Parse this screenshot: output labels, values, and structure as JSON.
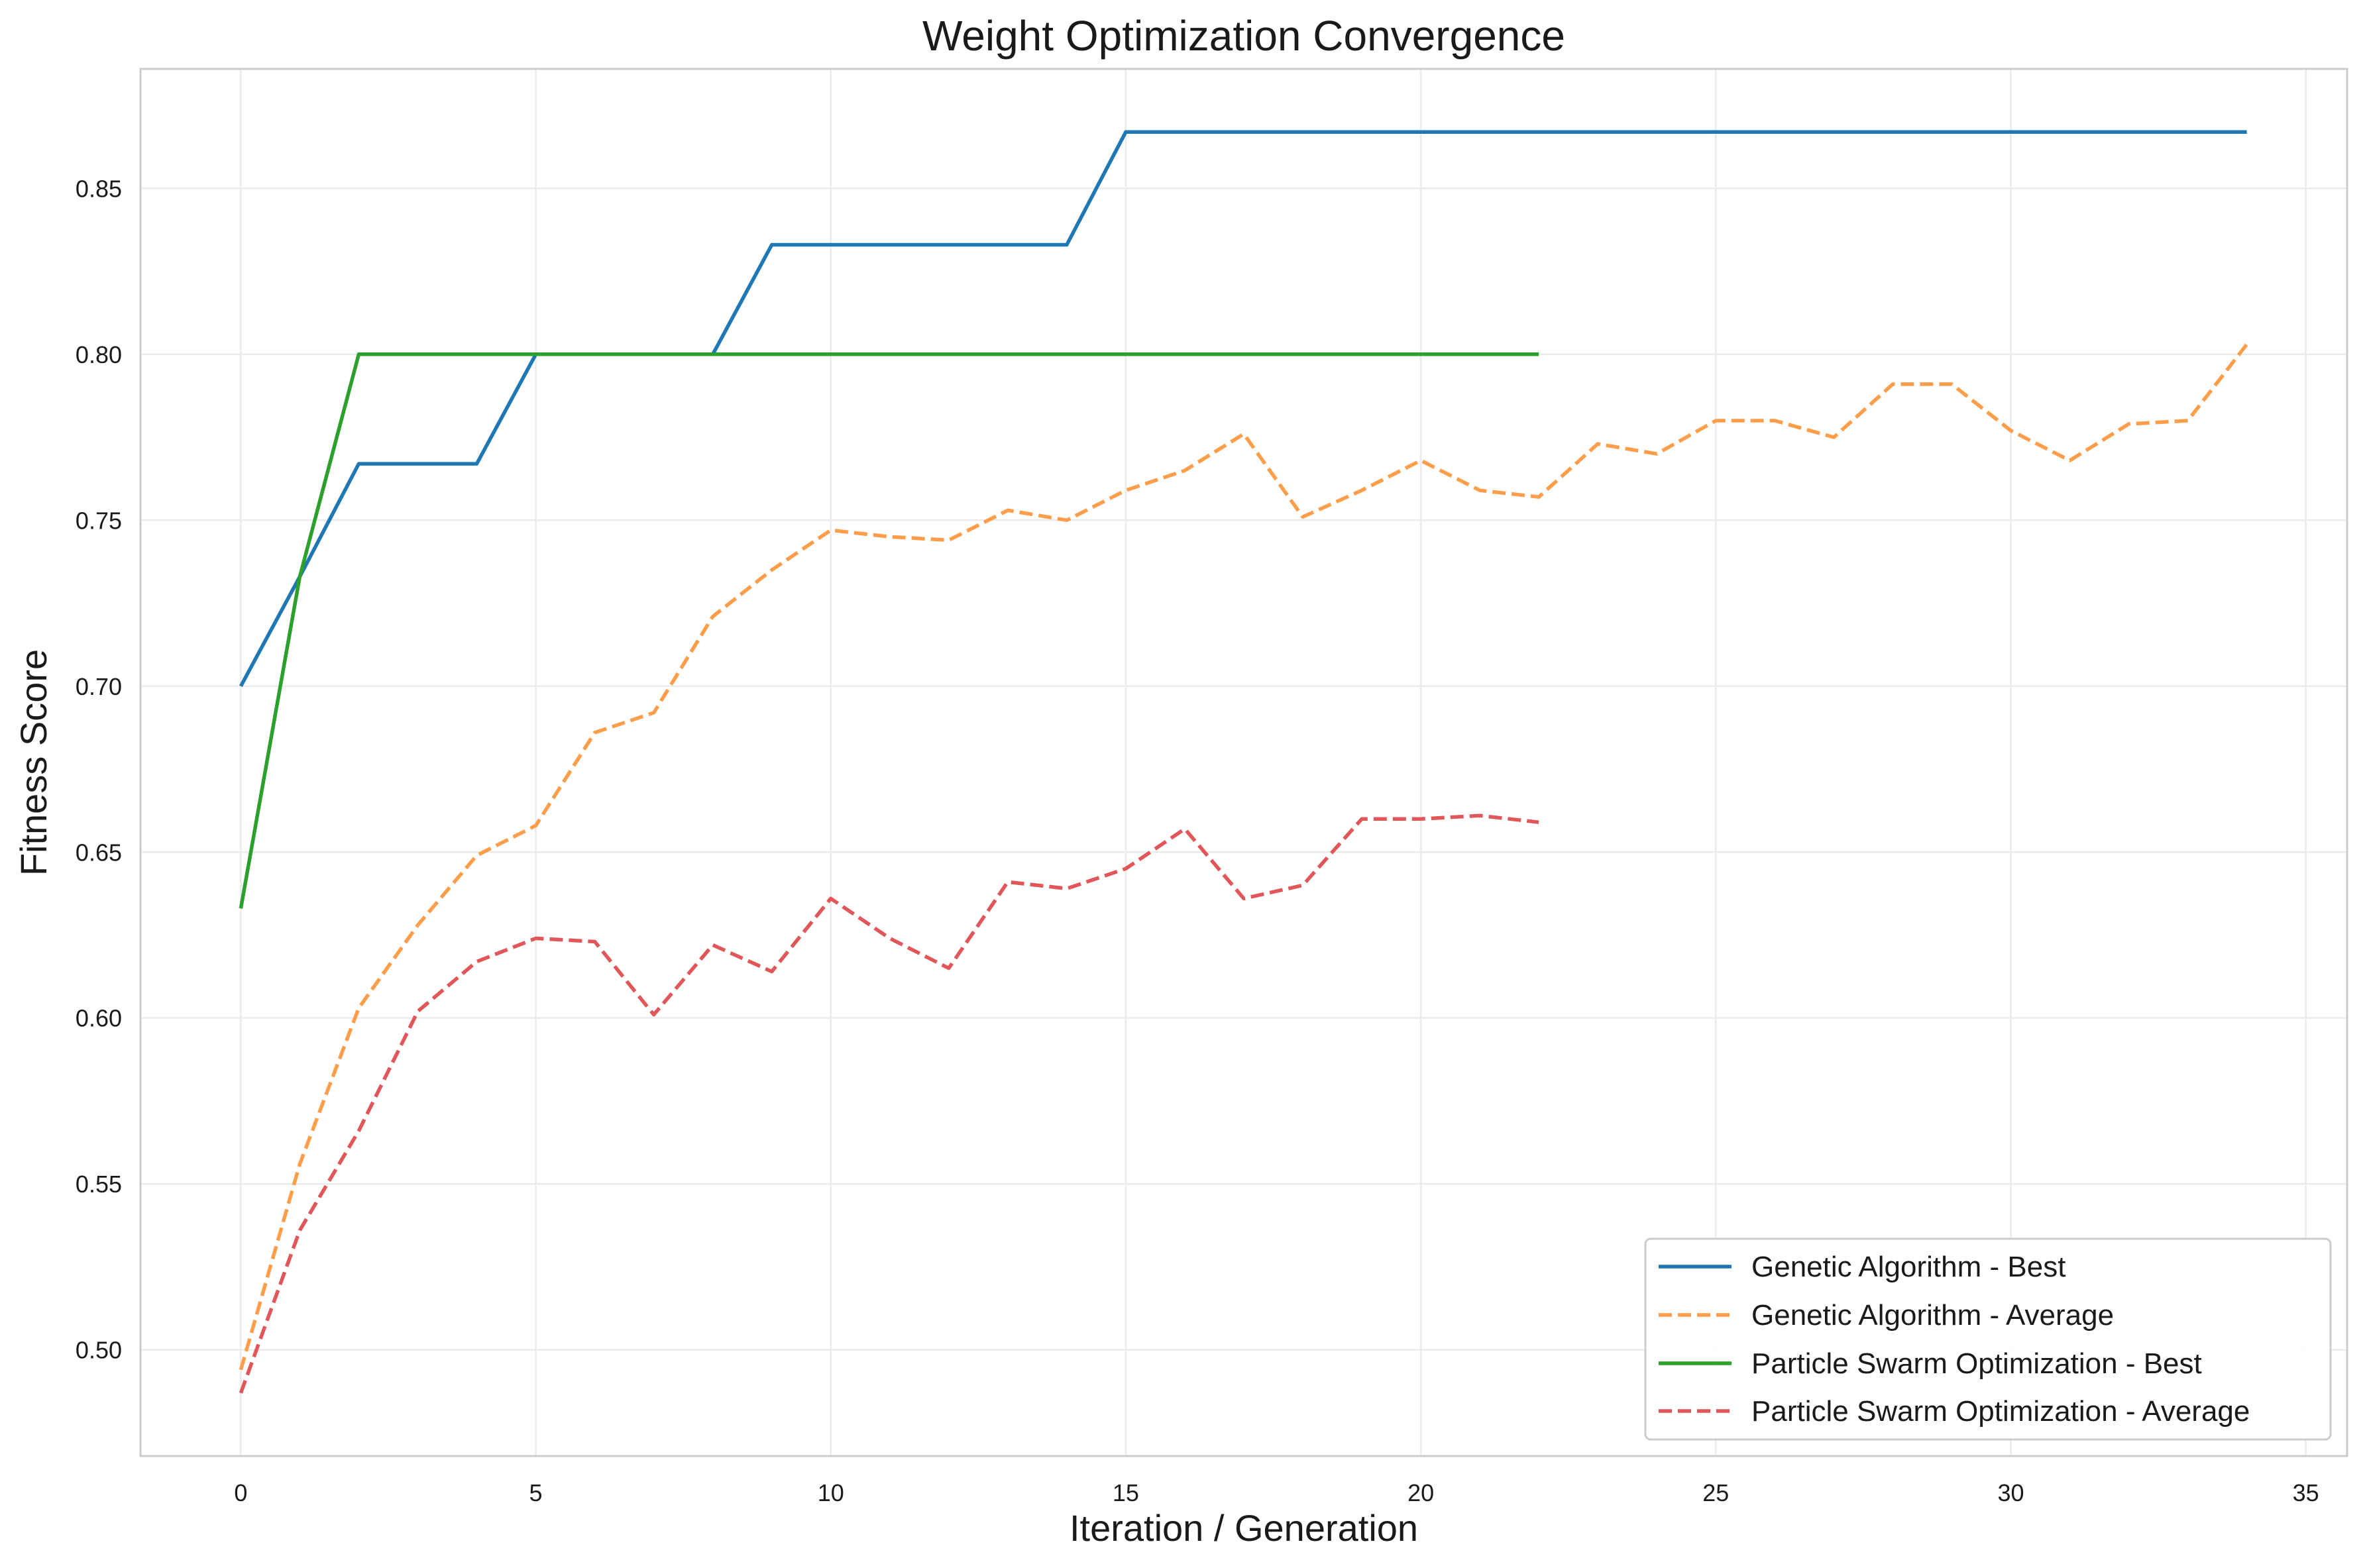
{
  "chart_data": {
    "type": "line",
    "title": "Weight Optimization Convergence",
    "xlabel": "Iteration / Generation",
    "ylabel": "Fitness Score",
    "xlim": [
      -1.7,
      35.7
    ],
    "ylim": [
      0.468,
      0.886
    ],
    "xticks": [
      0,
      5,
      10,
      15,
      20,
      25,
      30,
      35
    ],
    "yticks": [
      0.5,
      0.55,
      0.6,
      0.65,
      0.7,
      0.75,
      0.8,
      0.85
    ],
    "xtick_labels": [
      "0",
      "5",
      "10",
      "15",
      "20",
      "25",
      "30",
      "35"
    ],
    "ytick_labels": [
      "0.50",
      "0.55",
      "0.60",
      "0.65",
      "0.70",
      "0.75",
      "0.80",
      "0.85"
    ],
    "grid": true,
    "legend_position": "lower-right",
    "series": [
      {
        "name": "Genetic Algorithm - Best",
        "color": "#1f77b4",
        "style": "solid",
        "x": [
          0,
          1,
          2,
          3,
          4,
          5,
          6,
          7,
          8,
          9,
          10,
          11,
          12,
          13,
          14,
          15,
          16,
          17,
          18,
          19,
          20,
          21,
          22,
          23,
          24,
          25,
          26,
          27,
          28,
          29,
          30,
          31,
          32,
          33,
          34
        ],
        "y": [
          0.7,
          0.733,
          0.767,
          0.767,
          0.767,
          0.8,
          0.8,
          0.8,
          0.8,
          0.833,
          0.833,
          0.833,
          0.833,
          0.833,
          0.833,
          0.867,
          0.867,
          0.867,
          0.867,
          0.867,
          0.867,
          0.867,
          0.867,
          0.867,
          0.867,
          0.867,
          0.867,
          0.867,
          0.867,
          0.867,
          0.867,
          0.867,
          0.867,
          0.867,
          0.867
        ]
      },
      {
        "name": "Genetic Algorithm - Average",
        "color": "#ff9e4a",
        "style": "dashed",
        "x": [
          0,
          1,
          2,
          3,
          4,
          5,
          6,
          7,
          8,
          9,
          10,
          11,
          12,
          13,
          14,
          15,
          16,
          17,
          18,
          19,
          20,
          21,
          22,
          23,
          24,
          25,
          26,
          27,
          28,
          29,
          30,
          31,
          32,
          33,
          34
        ],
        "y": [
          0.494,
          0.556,
          0.603,
          0.628,
          0.649,
          0.658,
          0.686,
          0.692,
          0.721,
          0.735,
          0.747,
          0.745,
          0.744,
          0.753,
          0.75,
          0.759,
          0.765,
          0.776,
          0.751,
          0.759,
          0.768,
          0.759,
          0.757,
          0.773,
          0.77,
          0.78,
          0.78,
          0.775,
          0.791,
          0.791,
          0.777,
          0.768,
          0.779,
          0.78,
          0.803
        ]
      },
      {
        "name": "Particle Swarm Optimization - Best",
        "color": "#2ca02c",
        "style": "solid",
        "x": [
          0,
          1,
          2,
          3,
          4,
          5,
          6,
          7,
          8,
          9,
          10,
          11,
          12,
          13,
          14,
          15,
          16,
          17,
          18,
          19,
          20,
          21,
          22
        ],
        "y": [
          0.633,
          0.733,
          0.8,
          0.8,
          0.8,
          0.8,
          0.8,
          0.8,
          0.8,
          0.8,
          0.8,
          0.8,
          0.8,
          0.8,
          0.8,
          0.8,
          0.8,
          0.8,
          0.8,
          0.8,
          0.8,
          0.8,
          0.8
        ]
      },
      {
        "name": "Particle Swarm Optimization - Average",
        "color": "#e15759",
        "style": "dashed",
        "x": [
          0,
          1,
          2,
          3,
          4,
          5,
          6,
          7,
          8,
          9,
          10,
          11,
          12,
          13,
          14,
          15,
          16,
          17,
          18,
          19,
          20,
          21,
          22
        ],
        "y": [
          0.487,
          0.536,
          0.566,
          0.602,
          0.617,
          0.624,
          0.623,
          0.601,
          0.622,
          0.614,
          0.636,
          0.624,
          0.615,
          0.641,
          0.639,
          0.645,
          0.657,
          0.636,
          0.64,
          0.66,
          0.66,
          0.661,
          0.659
        ]
      }
    ]
  }
}
